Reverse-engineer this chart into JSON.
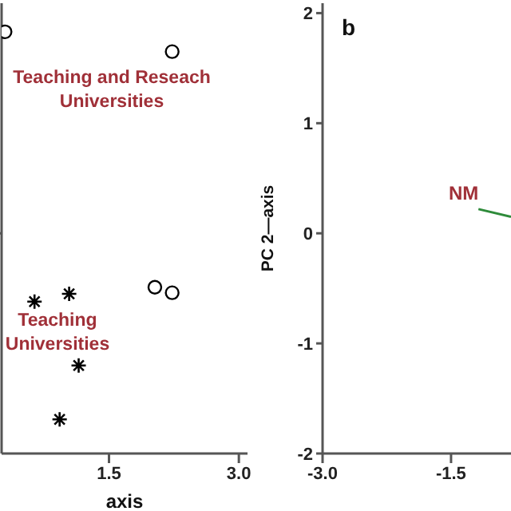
{
  "chart_data": [
    {
      "type": "scatter",
      "xlabel": "axis",
      "xlim": [
        0.26,
        3.1
      ],
      "xticks": [
        {
          "value": 1.5,
          "label": "1.5"
        },
        {
          "value": 3,
          "label": "3.0"
        }
      ],
      "ylim": [
        -2,
        2.09
      ],
      "yticks": [
        {
          "value": 0,
          "label": null
        }
      ],
      "tick_labels": "x",
      "grid": false,
      "legend": false,
      "series": [
        {
          "color": "#000000",
          "marker": "circle",
          "x": [
            0.3,
            2.23,
            2.03,
            2.23
          ],
          "values": [
            1.83,
            1.65,
            -0.49,
            -0.54
          ]
        },
        {
          "color": "#000000",
          "marker": "cross",
          "x": [
            0.64,
            1.04,
            1.15,
            0.93
          ],
          "values": [
            -0.62,
            -0.55,
            -1.2,
            -1.69
          ]
        }
      ],
      "annotations": [
        "Teaching and Reseach Universities",
        "Teaching Universities"
      ]
    },
    {
      "type": "line",
      "title": "b",
      "ylabel": "PC 2—axis",
      "xlim": [
        -3,
        -0.8
      ],
      "xticks": [
        {
          "value": -3,
          "label": "-3.0"
        },
        {
          "value": -1.5,
          "label": "-1.5"
        }
      ],
      "ylim": [
        -2,
        2.09
      ],
      "yticks": [
        -2,
        -1,
        0,
        1,
        2
      ],
      "grid": false,
      "legend": false,
      "series": [
        {
          "color": "#2e8b3a",
          "marker": "none",
          "x": [
            -1.18,
            -0.8
          ],
          "values": [
            0.22,
            0.15
          ]
        }
      ],
      "annotations": [
        {
          "text": "NM",
          "x": -1.18,
          "y": 0.22
        }
      ]
    }
  ]
}
